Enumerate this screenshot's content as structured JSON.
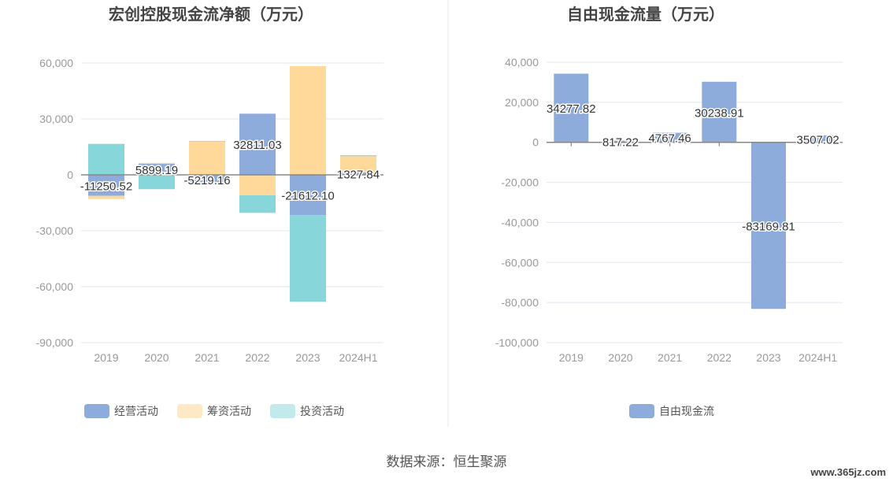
{
  "source_text": "数据来源：恒生聚源",
  "watermark": "www.365jz.com",
  "chart_data": [
    {
      "type": "bar",
      "stacked": true,
      "title": "宏创控股现金流净额（万元）",
      "categories": [
        "2019",
        "2020",
        "2021",
        "2022",
        "2023",
        "2024H1"
      ],
      "ylim": [
        -90000,
        60000
      ],
      "yticks": [
        60000,
        30000,
        0,
        -30000,
        -60000,
        -90000
      ],
      "ytick_labels": [
        "60,000",
        "30,000",
        "0",
        "-30,000",
        "-60,000",
        "-90,000"
      ],
      "series": [
        {
          "name": "经营活动",
          "color": "#8eacdb",
          "values": [
            -11250.52,
            5899.19,
            -5219.16,
            32811.03,
            -21612.1,
            1327.84
          ],
          "labels": [
            "-11250.52",
            "5899.19",
            "-5219.16",
            "32811.03",
            "-21612.10",
            "1327.84"
          ]
        },
        {
          "name": "筹资活动",
          "color": "#ffd999",
          "legend_color": "#ffe8c4",
          "values": [
            -1700,
            500,
            17900,
            -11000,
            58300,
            8700
          ]
        },
        {
          "name": "投资活动",
          "color": "#86d6da",
          "legend_color": "#c2eaec",
          "values": [
            16600,
            -7700,
            300,
            -9400,
            -46400,
            500
          ]
        }
      ],
      "legend": "bottom"
    },
    {
      "type": "bar",
      "title": "自由现金流量（万元）",
      "categories": [
        "2019",
        "2020",
        "2021",
        "2022",
        "2023",
        "2024H1"
      ],
      "ylim": [
        -100000,
        40000
      ],
      "yticks": [
        40000,
        20000,
        0,
        -20000,
        -40000,
        -60000,
        -80000,
        -100000
      ],
      "ytick_labels": [
        "40,000",
        "20,000",
        "0",
        "-20,000",
        "-40,000",
        "-60,000",
        "-80,000",
        "-100,000"
      ],
      "series": [
        {
          "name": "自由现金流",
          "color": "#8eacdb",
          "values": [
            34277.82,
            817.22,
            4767.46,
            30238.91,
            -83169.81,
            3507.02
          ],
          "labels": [
            "34277.82",
            "817.22",
            "4767.46",
            "30238.91",
            "-83169.81",
            "3507.02"
          ]
        }
      ],
      "legend": "bottom"
    }
  ]
}
